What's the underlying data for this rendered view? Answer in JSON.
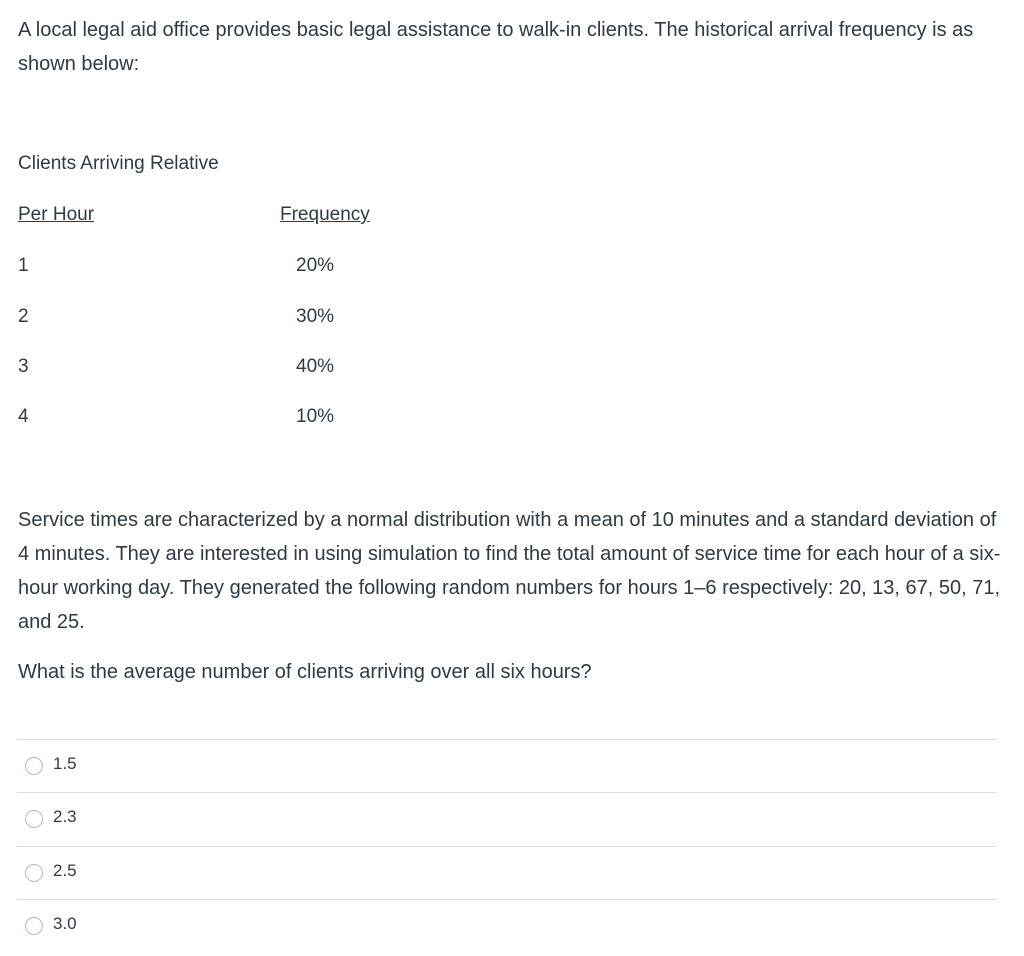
{
  "intro": "A local legal aid office provides basic legal assistance to walk-in clients. The historical arrival frequency is as shown below:",
  "table": {
    "header_line1": "Clients Arriving  Relative",
    "col1_header": "Per Hour",
    "col2_header": "Frequency",
    "rows": [
      {
        "clients": "1",
        "freq": "20%"
      },
      {
        "clients": "2",
        "freq": "30%"
      },
      {
        "clients": "3",
        "freq": "40%"
      },
      {
        "clients": "4",
        "freq": "10%"
      }
    ]
  },
  "body": "Service times are characterized by a normal distribution with a mean of 10 minutes and a standard deviation of 4 minutes. They are interested in using simulation to find the total amount of service time for each hour of a six-hour working day. They generated the following random numbers for hours 1–6 respectively: 20, 13, 67, 50, 71, and 25.",
  "question": "What is the average number of clients arriving over all six hours?",
  "answers": [
    "1.5",
    "2.3",
    "2.5",
    "3.0"
  ]
}
